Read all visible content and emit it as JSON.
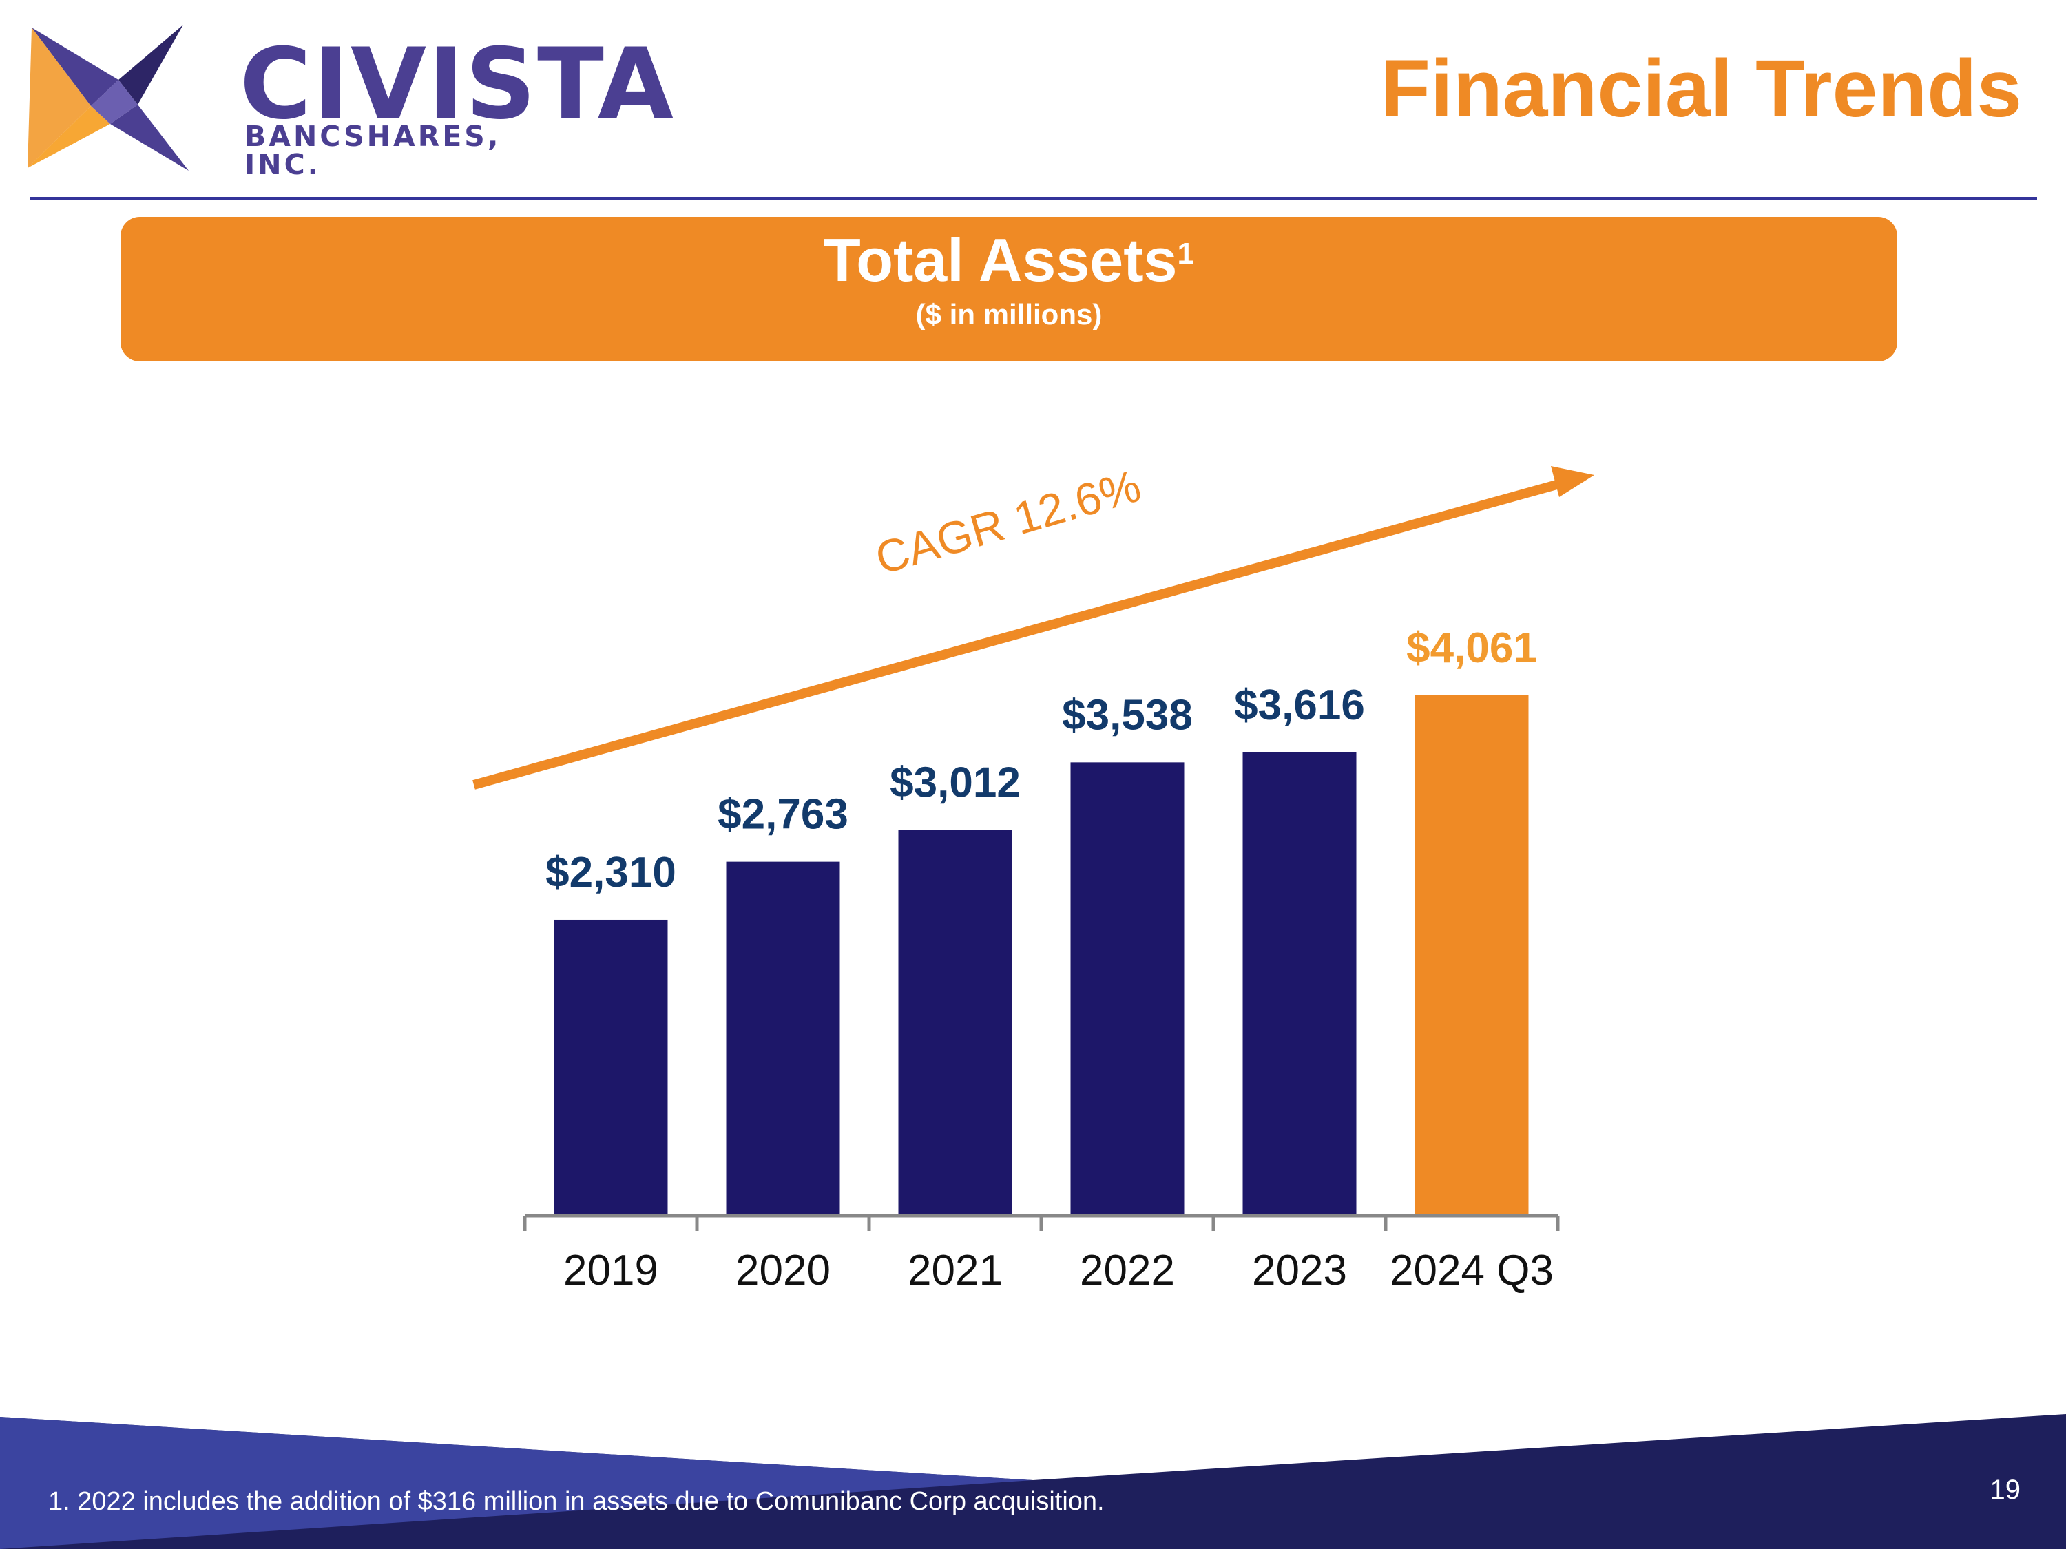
{
  "header": {
    "logo_name": "CIVISTA",
    "logo_subtitle": "BANCSHARES, INC.",
    "page_title": "Financial Trends"
  },
  "banner": {
    "title": "Total Assets",
    "title_footnote_mark": "1",
    "subtitle": "($ in millions)"
  },
  "annotation": {
    "cagr_label": "CAGR 12.6%"
  },
  "chart_data": {
    "type": "bar",
    "title": "Total Assets",
    "subtitle": "($ in millions)",
    "xlabel": "",
    "ylabel": "",
    "categories": [
      "2019",
      "2020",
      "2021",
      "2022",
      "2023",
      "2024 Q3"
    ],
    "values": [
      2310,
      2763,
      3012,
      3538,
      3616,
      4061
    ],
    "data_labels": [
      "$2,310",
      "$2,763",
      "$3,012",
      "$3,538",
      "$3,616",
      "$4,061"
    ],
    "ylim": [
      0,
      4250
    ],
    "grid": false,
    "highlight_index": 5,
    "colors": {
      "bar": "#1d1769",
      "highlight": "#ef8a25",
      "label": "#123a6b",
      "axis": "#888888",
      "arrow": "#ef8a25"
    }
  },
  "footer": {
    "footnote": "1.  2022 includes the addition of $316 million in assets due to Comunibanc Corp acquisition.",
    "page_number": "19"
  }
}
